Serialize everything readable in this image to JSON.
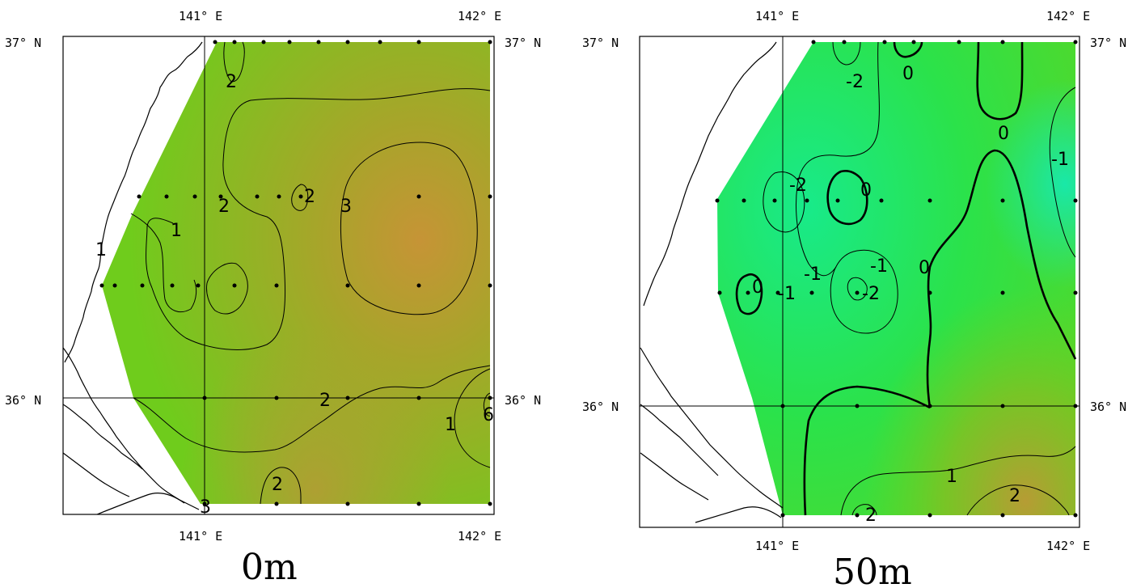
{
  "colors": {
    "low": "#1ee86e",
    "mid": "#6ccf1a",
    "high": "#c89a38",
    "frame": "#000000",
    "station": "#000000"
  },
  "panels": [
    {
      "id": "surface",
      "caption": "0m",
      "lon_ticks": [
        "141° E",
        "142° E"
      ],
      "lat_ticks": [
        "37° N",
        "36° N"
      ],
      "contour_labels": [
        "2",
        "2",
        "2",
        "3",
        "1",
        "1",
        "2",
        "2",
        "1",
        "3",
        "6"
      ]
    },
    {
      "id": "depth50",
      "caption": "50m",
      "lon_ticks": [
        "141° E",
        "142° E"
      ],
      "lat_ticks": [
        "37° N",
        "36° N"
      ],
      "contour_labels": [
        "-2",
        "0",
        "0",
        "-2",
        "0",
        "-1",
        "0",
        "-1",
        "-1",
        "0",
        "-1",
        "-2",
        "1",
        "2",
        "2"
      ]
    }
  ]
}
